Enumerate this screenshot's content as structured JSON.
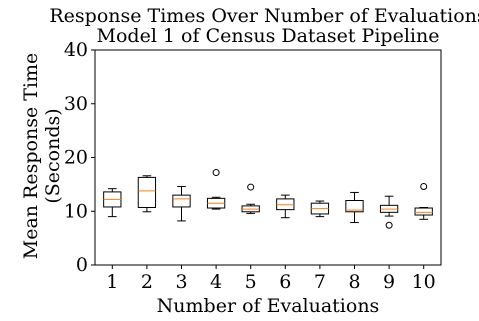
{
  "chart_data": {
    "type": "box",
    "title": "Response Times Over Number of Evaluations",
    "subtitle": "Model 1 of Census Dataset Pipeline",
    "xlabel": "Number of Evaluations",
    "ylabel_line1": "Mean Response Time",
    "ylabel_line2": "(Seconds)",
    "ylim": [
      0,
      40
    ],
    "yticks": [
      "0",
      "10",
      "20",
      "30",
      "40"
    ],
    "categories": [
      "1",
      "2",
      "3",
      "4",
      "5",
      "6",
      "7",
      "8",
      "9",
      "10"
    ],
    "boxes": [
      {
        "whislo": 9.0,
        "q1": 10.8,
        "med": 12.2,
        "q3": 13.6,
        "whishi": 14.2,
        "fliers": []
      },
      {
        "whislo": 9.9,
        "q1": 10.7,
        "med": 13.8,
        "q3": 16.3,
        "whishi": 16.6,
        "fliers": []
      },
      {
        "whislo": 8.2,
        "q1": 10.8,
        "med": 12.3,
        "q3": 13.0,
        "whishi": 14.6,
        "fliers": []
      },
      {
        "whislo": 10.4,
        "q1": 10.6,
        "med": 11.5,
        "q3": 12.4,
        "whishi": 12.6,
        "fliers": [
          17.2
        ]
      },
      {
        "whislo": 9.6,
        "q1": 9.9,
        "med": 10.4,
        "q3": 11.0,
        "whishi": 11.3,
        "fliers": [
          14.5
        ]
      },
      {
        "whislo": 8.8,
        "q1": 10.3,
        "med": 11.2,
        "q3": 12.3,
        "whishi": 13.0,
        "fliers": []
      },
      {
        "whislo": 9.0,
        "q1": 9.5,
        "med": 10.5,
        "q3": 11.5,
        "whishi": 11.9,
        "fliers": []
      },
      {
        "whislo": 7.9,
        "q1": 9.9,
        "med": 10.2,
        "q3": 12.0,
        "whishi": 13.5,
        "fliers": []
      },
      {
        "whislo": 9.1,
        "q1": 9.8,
        "med": 10.4,
        "q3": 11.1,
        "whishi": 12.8,
        "fliers": [
          7.4
        ]
      },
      {
        "whislo": 8.5,
        "q1": 9.3,
        "med": 9.8,
        "q3": 10.6,
        "whishi": 10.7,
        "fliers": [
          14.6
        ]
      }
    ],
    "colors": {
      "box": "#000000",
      "median": "#ff7f0e",
      "background": "#ffffff"
    },
    "grid": false,
    "legend": "none"
  }
}
